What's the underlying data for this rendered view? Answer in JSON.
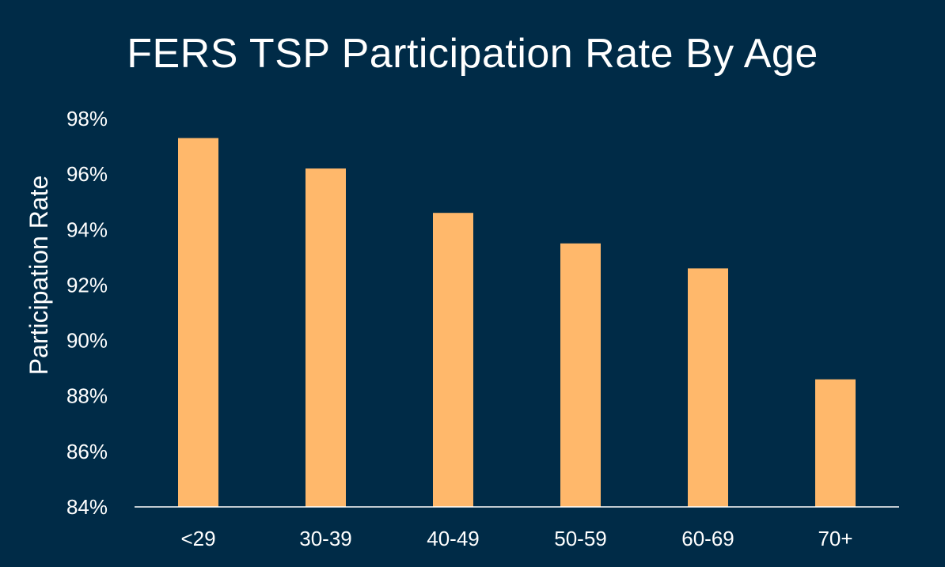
{
  "chart_data": {
    "type": "bar",
    "title": "FERS TSP Participation Rate By Age",
    "xlabel": "",
    "ylabel": "Participation Rate",
    "categories": [
      "<29",
      "30-39",
      "40-49",
      "50-59",
      "60-69",
      "70+"
    ],
    "values": [
      97.3,
      96.2,
      94.6,
      93.5,
      92.6,
      88.6
    ],
    "value_format": "percent",
    "ylim": [
      84,
      98
    ],
    "yticks": [
      84,
      86,
      88,
      90,
      92,
      94,
      96,
      98
    ],
    "ytick_labels": [
      "84%",
      "86%",
      "88%",
      "90%",
      "92%",
      "94%",
      "96%",
      "98%"
    ],
    "grid": false,
    "legend": "none"
  },
  "colors": {
    "background": "#002b47",
    "bar": "#ffb86b",
    "axis": "#ffffff",
    "text": "#ffffff"
  }
}
